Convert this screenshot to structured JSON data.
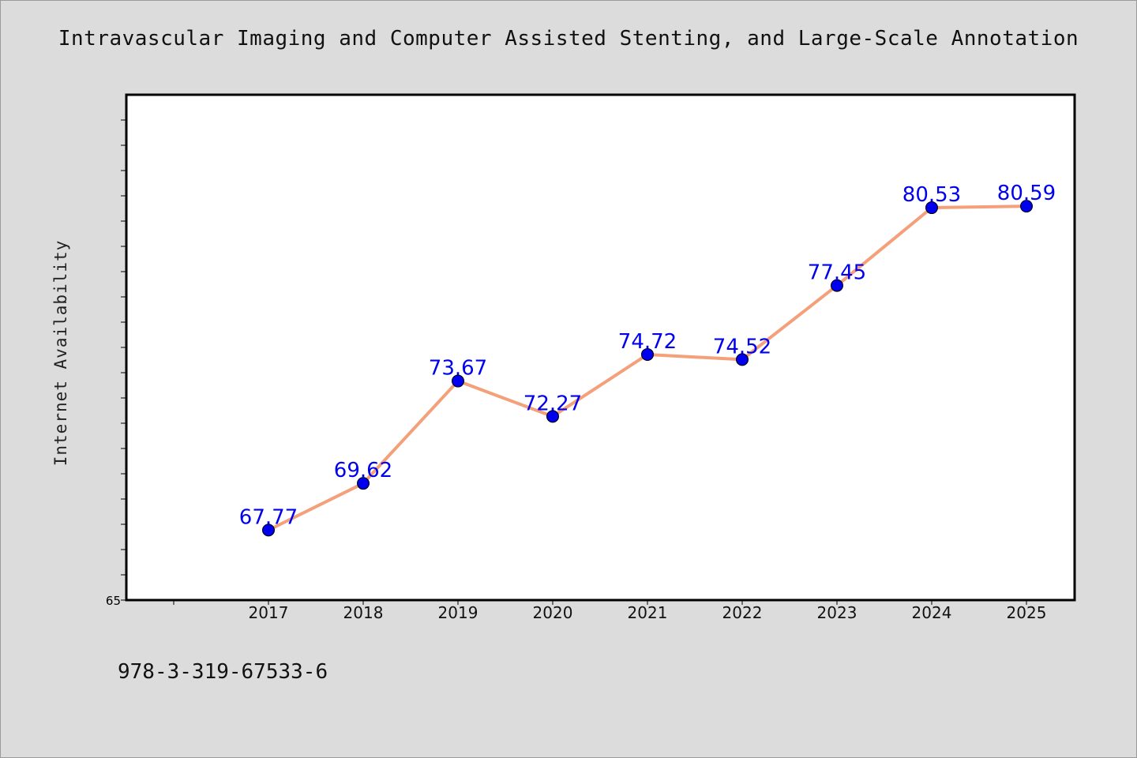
{
  "chart_data": {
    "type": "line",
    "title": "Intravascular Imaging and Computer Assisted Stenting, and Large-Scale Annotation",
    "xlabel": "",
    "ylabel": "Internet Availability",
    "categories": [
      "2017",
      "2018",
      "2019",
      "2020",
      "2021",
      "2022",
      "2023",
      "2024",
      "2025"
    ],
    "series": [
      {
        "values": [
          67.77,
          69.62,
          73.67,
          72.27,
          74.72,
          74.52,
          77.45,
          80.53,
          80.59
        ],
        "data_labels": [
          "67.77",
          "69.62",
          "73.67",
          "72.27",
          "74.72",
          "74.52",
          "77.45",
          "80.53",
          "80.59"
        ],
        "line_color": "#f4a07a",
        "marker_color": "#0000ee",
        "label_color": "#0000ee"
      }
    ],
    "ylim": [
      65,
      85
    ],
    "y_tick_labels": [
      "65"
    ],
    "grid": false,
    "legend": "none"
  },
  "footer_text": "978-3-319-67533-6"
}
